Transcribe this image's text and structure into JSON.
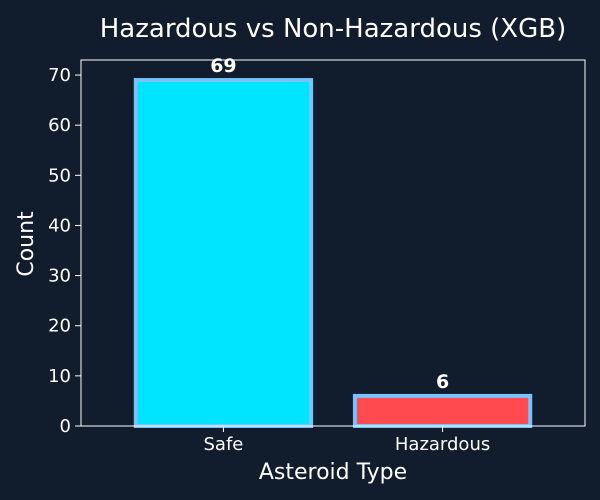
{
  "chart_data": {
    "type": "bar",
    "title": "Hazardous vs Non-Hazardous (XGB)",
    "xlabel": "Asteroid Type",
    "ylabel": "Count",
    "categories": [
      "Safe",
      "Hazardous"
    ],
    "values": [
      69,
      6
    ],
    "data_labels": [
      "69",
      "6"
    ],
    "ylim": [
      0,
      73
    ],
    "yticks": [
      0,
      10,
      20,
      30,
      40,
      50,
      60,
      70
    ],
    "ytick_labels": [
      "0",
      "10",
      "20",
      "30",
      "40",
      "50",
      "60",
      "70"
    ],
    "grid": false,
    "legend": "none",
    "colors": {
      "background": "#111c2d",
      "bar_fills": [
        "#00e5ff",
        "#ff4b4f"
      ],
      "bar_edge": "#76c3ff",
      "axes": "#ffffff",
      "text": "#ffffff"
    }
  }
}
